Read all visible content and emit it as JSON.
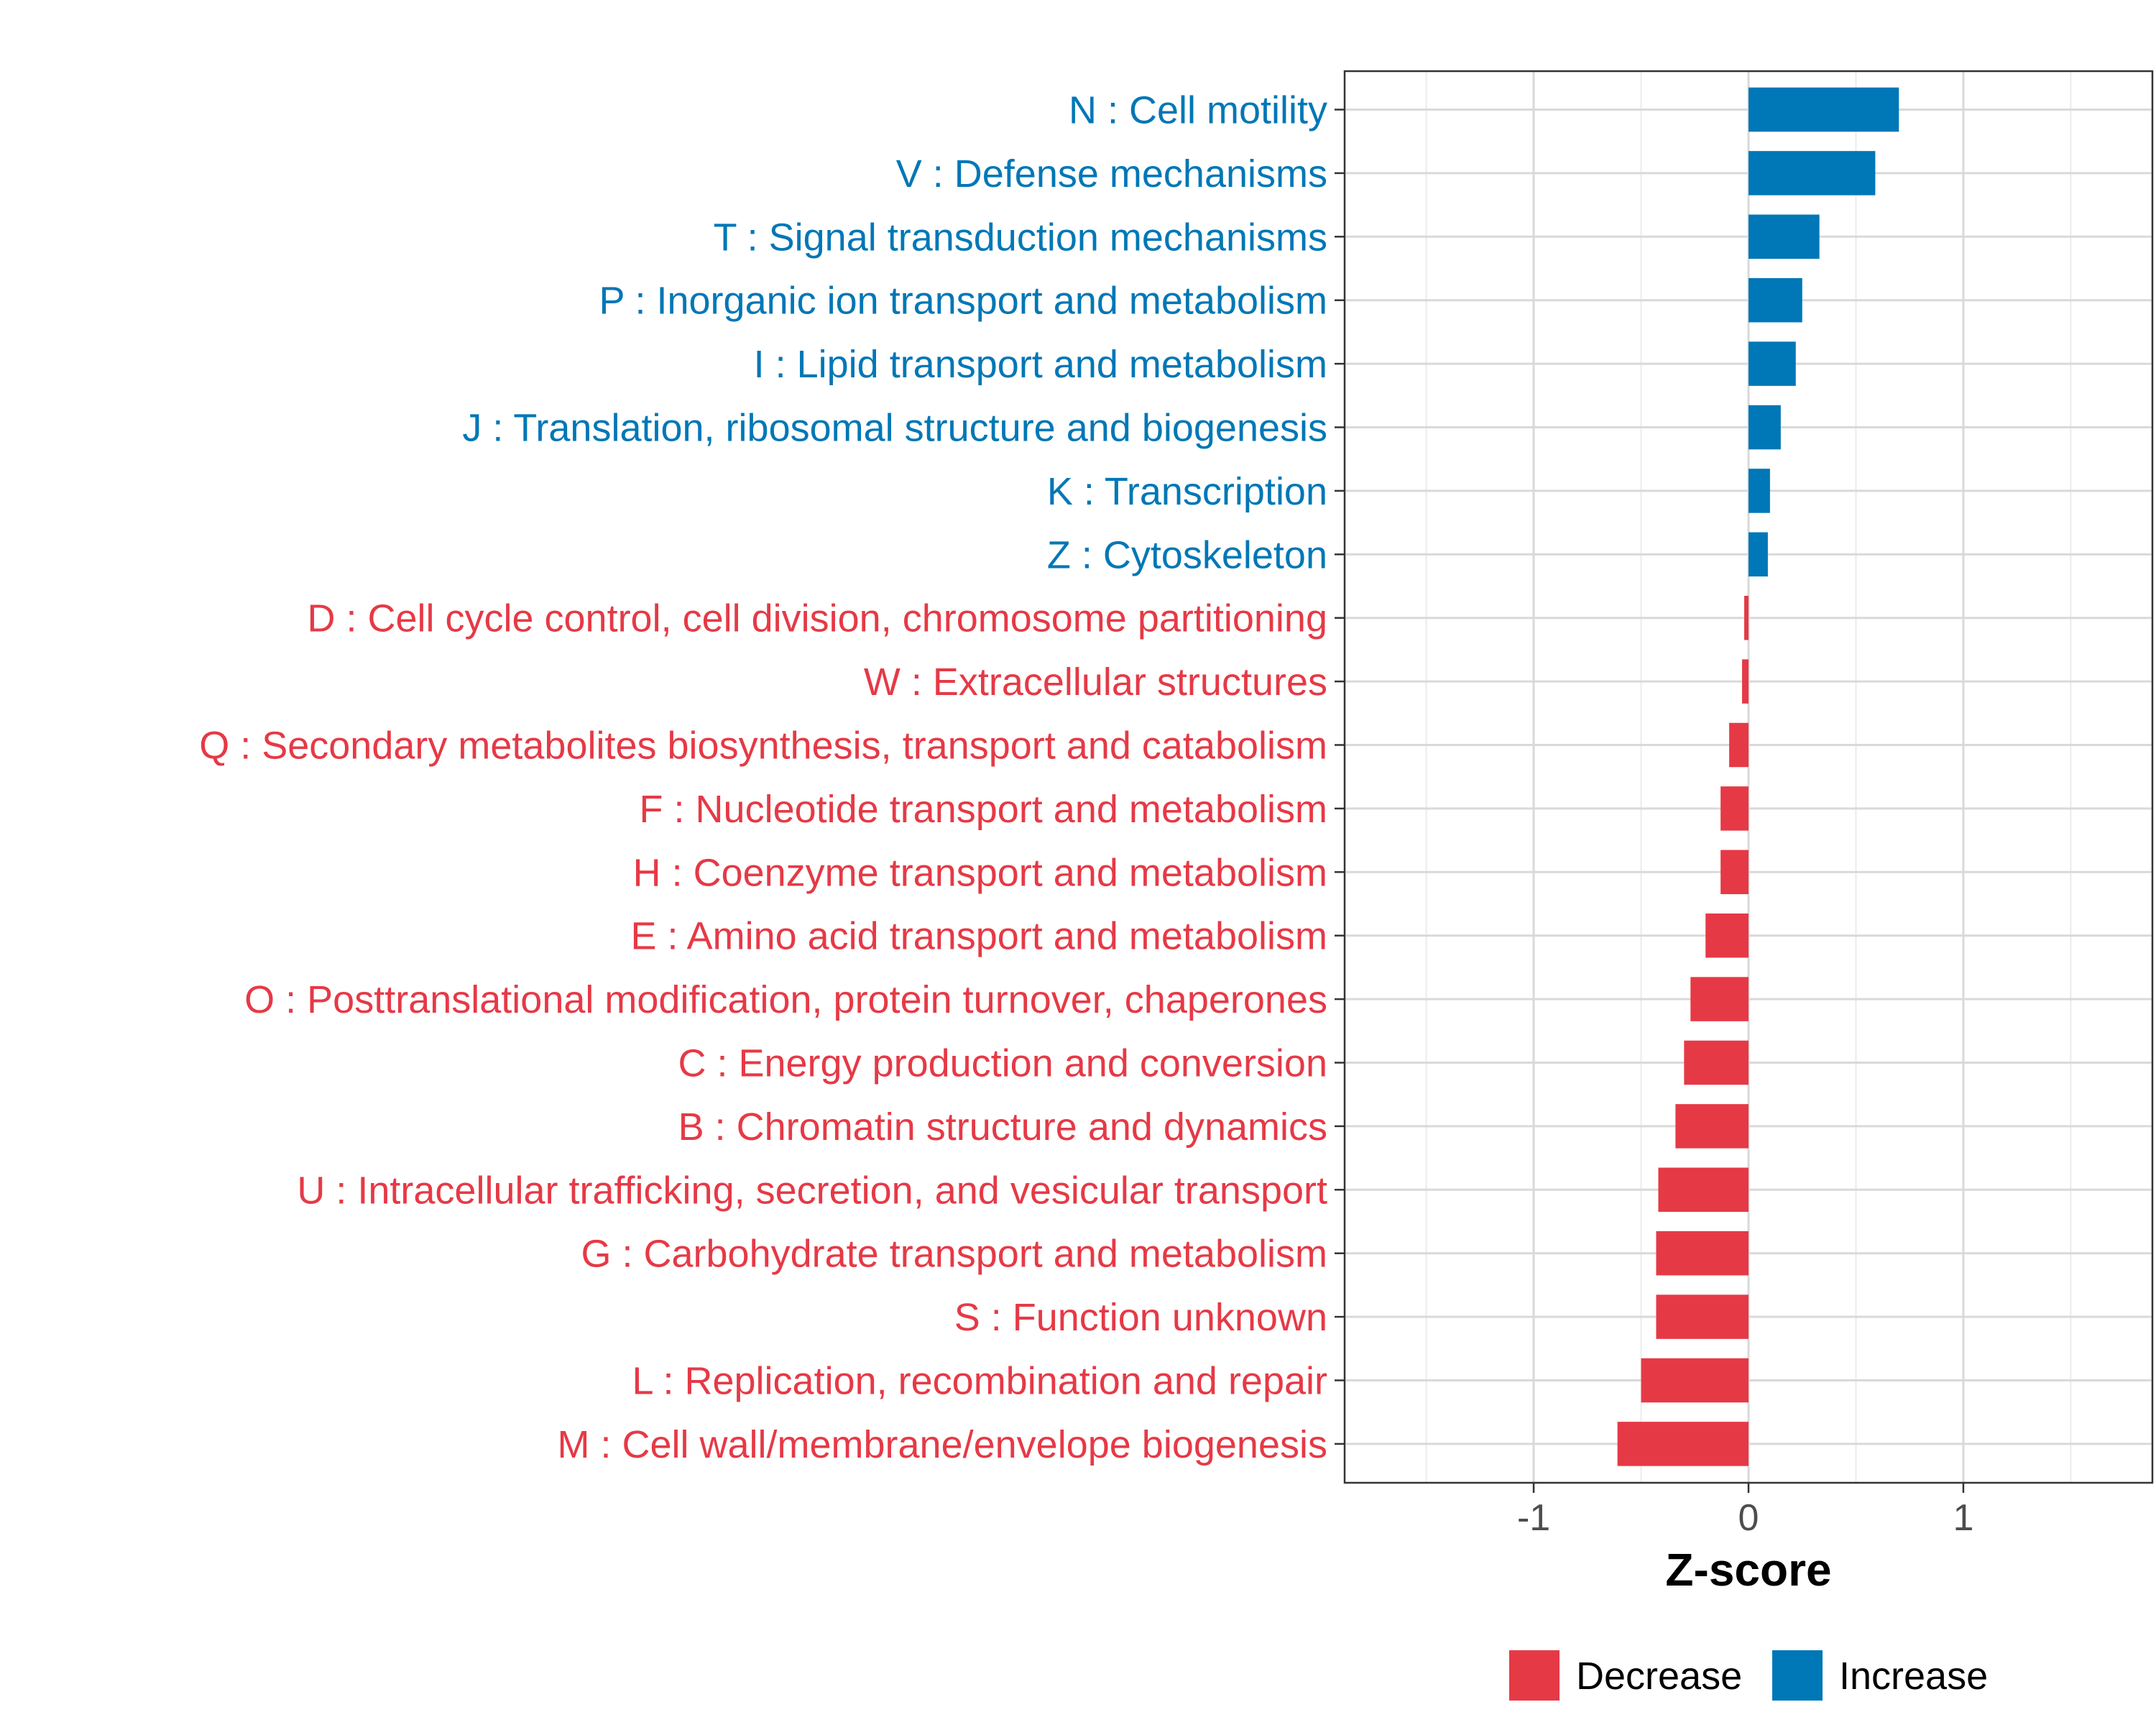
{
  "chart_data": {
    "type": "bar",
    "orientation": "horizontal",
    "xlabel": "Z-score",
    "ylabel": "",
    "xlim": [
      -1.88,
      1.88
    ],
    "x_ticks": [
      {
        "value": -1,
        "label": "-1"
      },
      {
        "value": 0,
        "label": "0"
      },
      {
        "value": 1,
        "label": "1"
      }
    ],
    "grid": true,
    "legend_position": "bottom",
    "legend": [
      {
        "name": "Decrease",
        "color": "#e63946"
      },
      {
        "name": "Increase",
        "color": "#0077b6"
      }
    ],
    "categories": [
      {
        "label": "N : Cell motility",
        "value": 0.7,
        "group": "Increase"
      },
      {
        "label": "V : Defense mechanisms",
        "value": 0.59,
        "group": "Increase"
      },
      {
        "label": "T : Signal transduction mechanisms",
        "value": 0.33,
        "group": "Increase"
      },
      {
        "label": "P : Inorganic ion transport and metabolism",
        "value": 0.25,
        "group": "Increase"
      },
      {
        "label": "I : Lipid transport and metabolism",
        "value": 0.22,
        "group": "Increase"
      },
      {
        "label": "J : Translation, ribosomal structure and biogenesis",
        "value": 0.15,
        "group": "Increase"
      },
      {
        "label": "K : Transcription",
        "value": 0.1,
        "group": "Increase"
      },
      {
        "label": "Z : Cytoskeleton",
        "value": 0.09,
        "group": "Increase"
      },
      {
        "label": "D : Cell cycle control, cell division, chromosome partitioning",
        "value": -0.02,
        "group": "Decrease"
      },
      {
        "label": "W : Extracellular structures",
        "value": -0.03,
        "group": "Decrease"
      },
      {
        "label": "Q : Secondary metabolites biosynthesis, transport and catabolism",
        "value": -0.09,
        "group": "Decrease"
      },
      {
        "label": "F : Nucleotide transport and metabolism",
        "value": -0.13,
        "group": "Decrease"
      },
      {
        "label": "H : Coenzyme transport and metabolism",
        "value": -0.13,
        "group": "Decrease"
      },
      {
        "label": "E : Amino acid transport and metabolism",
        "value": -0.2,
        "group": "Decrease"
      },
      {
        "label": "O : Posttranslational modification, protein turnover, chaperones",
        "value": -0.27,
        "group": "Decrease"
      },
      {
        "label": "C : Energy production and conversion",
        "value": -0.3,
        "group": "Decrease"
      },
      {
        "label": "B : Chromatin structure and dynamics",
        "value": -0.34,
        "group": "Decrease"
      },
      {
        "label": "U : Intracellular trafficking, secretion, and vesicular transport",
        "value": -0.42,
        "group": "Decrease"
      },
      {
        "label": "G : Carbohydrate transport and metabolism",
        "value": -0.43,
        "group": "Decrease"
      },
      {
        "label": "S : Function unknown",
        "value": -0.43,
        "group": "Decrease"
      },
      {
        "label": "L : Replication, recombination and repair",
        "value": -0.5,
        "group": "Decrease"
      },
      {
        "label": "M : Cell wall/membrane/envelope biogenesis",
        "value": -0.61,
        "group": "Decrease"
      }
    ]
  }
}
